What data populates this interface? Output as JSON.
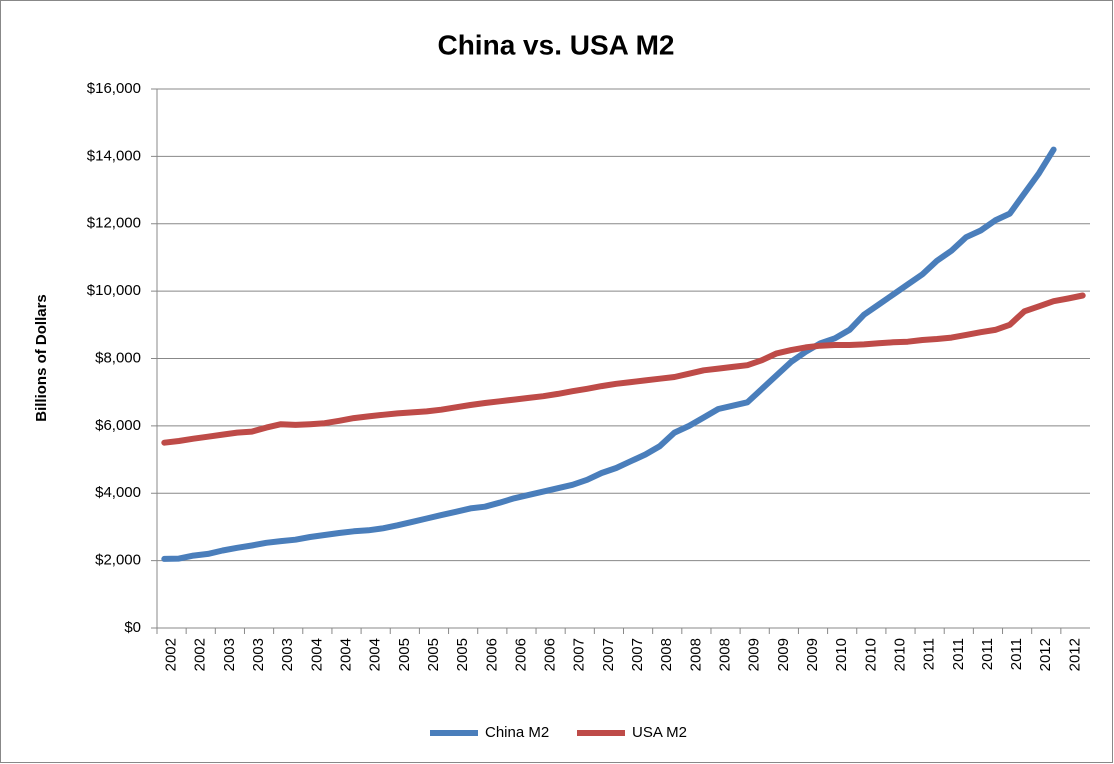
{
  "chart_data": {
    "type": "line",
    "title": "China vs. USA M2",
    "y_label": "Billions of Dollars",
    "categories": [
      "2002",
      null,
      "2002",
      null,
      "2003",
      null,
      "2003",
      null,
      "2003",
      null,
      "2004",
      null,
      "2004",
      null,
      "2004",
      null,
      "2005",
      null,
      "2005",
      null,
      "2005",
      null,
      "2006",
      null,
      "2006",
      null,
      "2006",
      null,
      "2007",
      null,
      "2007",
      null,
      "2007",
      null,
      "2008",
      null,
      "2008",
      null,
      "2008",
      null,
      "2009",
      null,
      "2009",
      null,
      "2009",
      null,
      "2010",
      null,
      "2010",
      null,
      "2010",
      null,
      "2011",
      null,
      "2011",
      null,
      "2011",
      null,
      "2011",
      null,
      "2012",
      null,
      "2012",
      null
    ],
    "series": [
      {
        "name": "China M2",
        "color": "#4a7ebb",
        "values": [
          2050,
          2060,
          2150,
          2200,
          2300,
          2380,
          2450,
          2530,
          2580,
          2620,
          2700,
          2760,
          2820,
          2870,
          2900,
          2960,
          3050,
          3150,
          3250,
          3350,
          3450,
          3550,
          3600,
          3720,
          3850,
          3950,
          4050,
          4150,
          4250,
          4400,
          4600,
          4750,
          4950,
          5150,
          5400,
          5800,
          6000,
          6250,
          6500,
          6600,
          6700,
          7100,
          7500,
          7900,
          8200,
          8450,
          8600,
          8850,
          9300,
          9600,
          9900,
          10200,
          10500,
          10900,
          11200,
          11600,
          11800,
          12100,
          12300,
          12900,
          13500,
          14200,
          null,
          null
        ]
      },
      {
        "name": "USA M2",
        "color": "#be4b48",
        "values": [
          5500,
          5550,
          5620,
          5680,
          5740,
          5800,
          5830,
          5950,
          6050,
          6030,
          6050,
          6080,
          6150,
          6230,
          6280,
          6330,
          6370,
          6400,
          6430,
          6480,
          6550,
          6620,
          6680,
          6730,
          6780,
          6830,
          6880,
          6950,
          7030,
          7100,
          7180,
          7250,
          7300,
          7350,
          7400,
          7450,
          7550,
          7650,
          7700,
          7750,
          7800,
          7950,
          8150,
          8250,
          8330,
          8380,
          8400,
          8400,
          8420,
          8450,
          8480,
          8500,
          8550,
          8580,
          8620,
          8700,
          8780,
          8850,
          9000,
          9400,
          9550,
          9700,
          9780,
          9870
        ]
      }
    ],
    "ylim": [
      0,
      16000
    ],
    "yticks": [
      {
        "value": 0,
        "label": "$0"
      },
      {
        "value": 2000,
        "label": "$2,000"
      },
      {
        "value": 4000,
        "label": "$4,000"
      },
      {
        "value": 6000,
        "label": "$6,000"
      },
      {
        "value": 8000,
        "label": "$8,000"
      },
      {
        "value": 10000,
        "label": "$10,000"
      },
      {
        "value": 12000,
        "label": "$12,000"
      },
      {
        "value": 14000,
        "label": "$14,000"
      },
      {
        "value": 16000,
        "label": "$16,000"
      }
    ],
    "grid": true,
    "legend": "bottom"
  }
}
